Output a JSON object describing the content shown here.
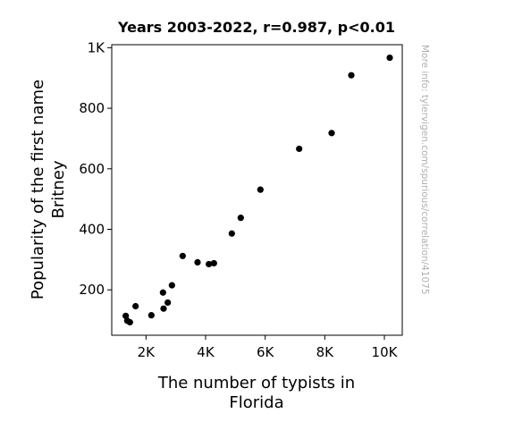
{
  "chart_data": {
    "type": "scatter",
    "title": "Years 2003-2022, r=0.987, p<0.01",
    "xlabel_lines": [
      "The number of typists in",
      "Florida"
    ],
    "ylabel_lines": [
      "Popularity of the first name",
      "Britney"
    ],
    "xlim": [
      850,
      10600
    ],
    "ylim": [
      50,
      1010
    ],
    "x_ticks": [
      {
        "value": 2000,
        "label": "2K"
      },
      {
        "value": 4000,
        "label": "4K"
      },
      {
        "value": 6000,
        "label": "6K"
      },
      {
        "value": 8000,
        "label": "8K"
      },
      {
        "value": 10000,
        "label": "10K"
      }
    ],
    "y_ticks": [
      {
        "value": 200,
        "label": "200"
      },
      {
        "value": 400,
        "label": "400"
      },
      {
        "value": 600,
        "label": "600"
      },
      {
        "value": 800,
        "label": "800"
      },
      {
        "value": 1000,
        "label": "1K"
      }
    ],
    "grid": false,
    "legend": "none",
    "marker_color": "#000000",
    "points": [
      {
        "x": 1320,
        "y": 114
      },
      {
        "x": 1370,
        "y": 98
      },
      {
        "x": 1460,
        "y": 93
      },
      {
        "x": 1650,
        "y": 146
      },
      {
        "x": 2180,
        "y": 116
      },
      {
        "x": 2570,
        "y": 191
      },
      {
        "x": 2590,
        "y": 138
      },
      {
        "x": 2730,
        "y": 158
      },
      {
        "x": 2870,
        "y": 215
      },
      {
        "x": 3230,
        "y": 312
      },
      {
        "x": 3730,
        "y": 291
      },
      {
        "x": 4110,
        "y": 285
      },
      {
        "x": 4280,
        "y": 288
      },
      {
        "x": 4880,
        "y": 386
      },
      {
        "x": 5180,
        "y": 438
      },
      {
        "x": 5840,
        "y": 531
      },
      {
        "x": 7140,
        "y": 666
      },
      {
        "x": 8230,
        "y": 718
      },
      {
        "x": 8890,
        "y": 909
      },
      {
        "x": 10180,
        "y": 967
      }
    ]
  },
  "side_note": "More info: tylervigen.com/spurious/correlation/41075"
}
